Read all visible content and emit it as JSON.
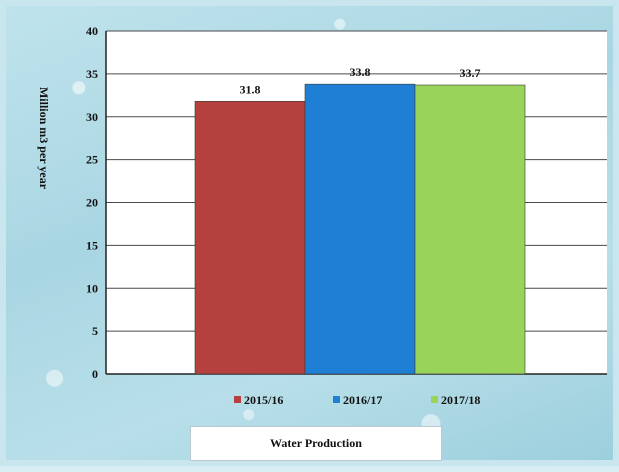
{
  "chart_data": {
    "type": "bar",
    "categories": [
      "2015/16",
      "2016/17",
      "2017/18"
    ],
    "values": [
      31.8,
      33.8,
      33.7
    ],
    "data_labels": [
      "31.8",
      "33.8",
      "33.7"
    ],
    "ylabel": "Million m3 per year",
    "ylim": [
      0,
      40
    ],
    "yticks": [
      0,
      5,
      10,
      15,
      20,
      25,
      30,
      35,
      40
    ],
    "grid": true,
    "legend": "bottom",
    "colors": [
      "#b5413f",
      "#1f7fd4",
      "#9ad35a"
    ]
  },
  "caption": "Water Production"
}
